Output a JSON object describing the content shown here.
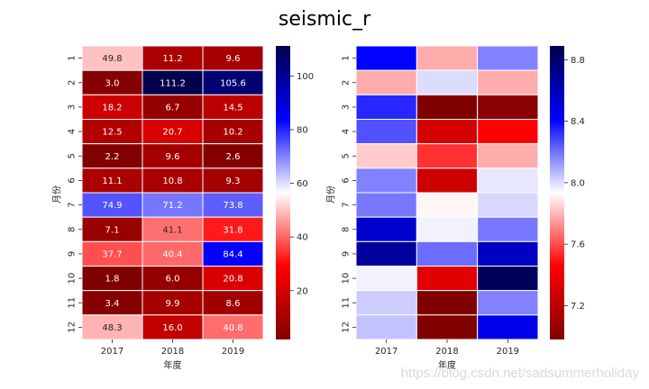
{
  "figure": {
    "suptitle": "seismic_r",
    "watermark": "https://blog.csdn.net/sadsummerholiday"
  },
  "chart_data": [
    {
      "type": "heatmap",
      "title": "",
      "xlabel": "年度",
      "ylabel": "月份",
      "colormap": "seismic_r",
      "annotated": true,
      "x_categories": [
        "2017",
        "2018",
        "2019"
      ],
      "y_categories": [
        "1",
        "2",
        "3",
        "4",
        "5",
        "6",
        "7",
        "8",
        "9",
        "10",
        "11",
        "12"
      ],
      "values": [
        [
          49.8,
          11.2,
          9.6
        ],
        [
          3.0,
          111.2,
          105.6
        ],
        [
          18.2,
          6.7,
          14.5
        ],
        [
          12.5,
          20.7,
          10.2
        ],
        [
          2.2,
          9.6,
          2.6
        ],
        [
          11.1,
          10.8,
          9.3
        ],
        [
          74.9,
          71.2,
          73.8
        ],
        [
          7.1,
          41.1,
          31.8
        ],
        [
          37.7,
          40.4,
          84.4
        ],
        [
          1.8,
          6.0,
          20.8
        ],
        [
          3.4,
          9.9,
          8.6
        ],
        [
          48.3,
          16.0,
          40.8
        ]
      ],
      "annotations": [
        [
          "49.8",
          "11.2",
          "9.6"
        ],
        [
          "3.0",
          "111.2",
          "105.6"
        ],
        [
          "18.2",
          "6.7",
          "14.5"
        ],
        [
          "12.5",
          "20.7",
          "10.2"
        ],
        [
          "2.2",
          "9.6",
          "2.6"
        ],
        [
          "11.1",
          "10.8",
          "9.3"
        ],
        [
          "74.9",
          "71.2",
          "73.8"
        ],
        [
          "7.1",
          "41.1",
          "31.8"
        ],
        [
          "37.7",
          "40.4",
          "84.4"
        ],
        [
          "1.8",
          "6.0",
          "20.8"
        ],
        [
          "3.4",
          "9.9",
          "8.6"
        ],
        [
          "48.3",
          "16.0",
          "40.8"
        ]
      ],
      "colorbar": {
        "vmin": 1.8,
        "vmax": 111.2,
        "ticks": [
          20,
          40,
          60,
          80,
          100
        ],
        "tick_labels": [
          "20",
          "40",
          "60",
          "80",
          "100"
        ]
      }
    },
    {
      "type": "heatmap",
      "title": "",
      "xlabel": "年度",
      "ylabel": "月份",
      "colormap": "seismic_r",
      "annotated": false,
      "x_categories": [
        "2017",
        "2018",
        "2019"
      ],
      "y_categories": [
        "1",
        "2",
        "3",
        "4",
        "5",
        "6",
        "7",
        "8",
        "9",
        "10",
        "11",
        "12"
      ],
      "values": [
        [
          8.41,
          7.78,
          8.17
        ],
        [
          7.78,
          8.0,
          7.78
        ],
        [
          8.34,
          6.98,
          7.02
        ],
        [
          8.26,
          7.3,
          7.46
        ],
        [
          7.84,
          7.55,
          7.78
        ],
        [
          8.17,
          7.27,
          7.98
        ],
        [
          8.19,
          7.92,
          8.01
        ],
        [
          8.55,
          7.96,
          8.19
        ],
        [
          8.68,
          8.21,
          8.57
        ],
        [
          7.96,
          7.34,
          8.85
        ],
        [
          8.03,
          6.98,
          8.17
        ],
        [
          8.05,
          6.98,
          8.47
        ]
      ],
      "colorbar": {
        "vmin": 6.98,
        "vmax": 8.89,
        "ticks": [
          7.2,
          7.6,
          8.0,
          8.4,
          8.8
        ],
        "tick_labels": [
          "7.2",
          "7.6",
          "8.0",
          "8.4",
          "8.8"
        ]
      }
    }
  ]
}
